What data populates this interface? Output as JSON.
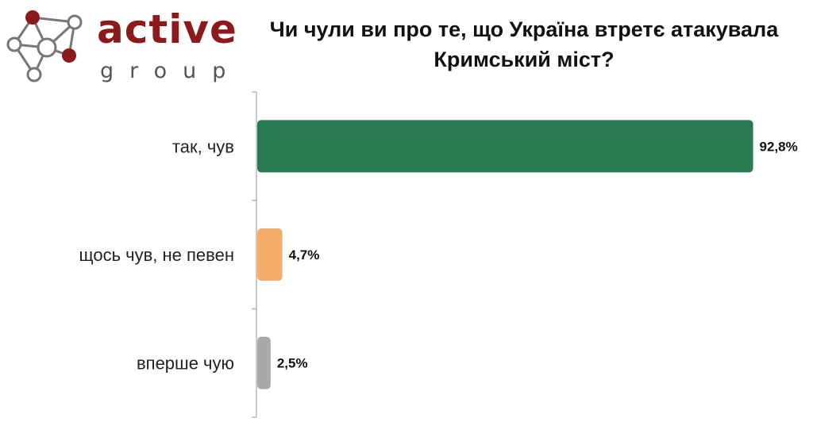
{
  "logo": {
    "name": "active",
    "sub": "group",
    "colors": {
      "text": "#8c1a1a",
      "nodes_dark": "#8c1a1a",
      "nodes_light": "#777777"
    }
  },
  "header": {
    "title": "Чи чули ви про те, що Україна втретє атакувала Кримський міст?"
  },
  "chart_data": {
    "type": "bar",
    "orientation": "horizontal",
    "categories": [
      "так, чув",
      "щось чув, не певен",
      "вперше чую"
    ],
    "values": [
      92.8,
      4.7,
      2.5
    ],
    "value_labels": [
      "92,8%",
      "4,7%",
      "2,5%"
    ],
    "colors": [
      "#2a7a52",
      "#f4ae6c",
      "#a9a9a9"
    ],
    "xlim": [
      0,
      100
    ],
    "grid": false,
    "legend": "none"
  }
}
